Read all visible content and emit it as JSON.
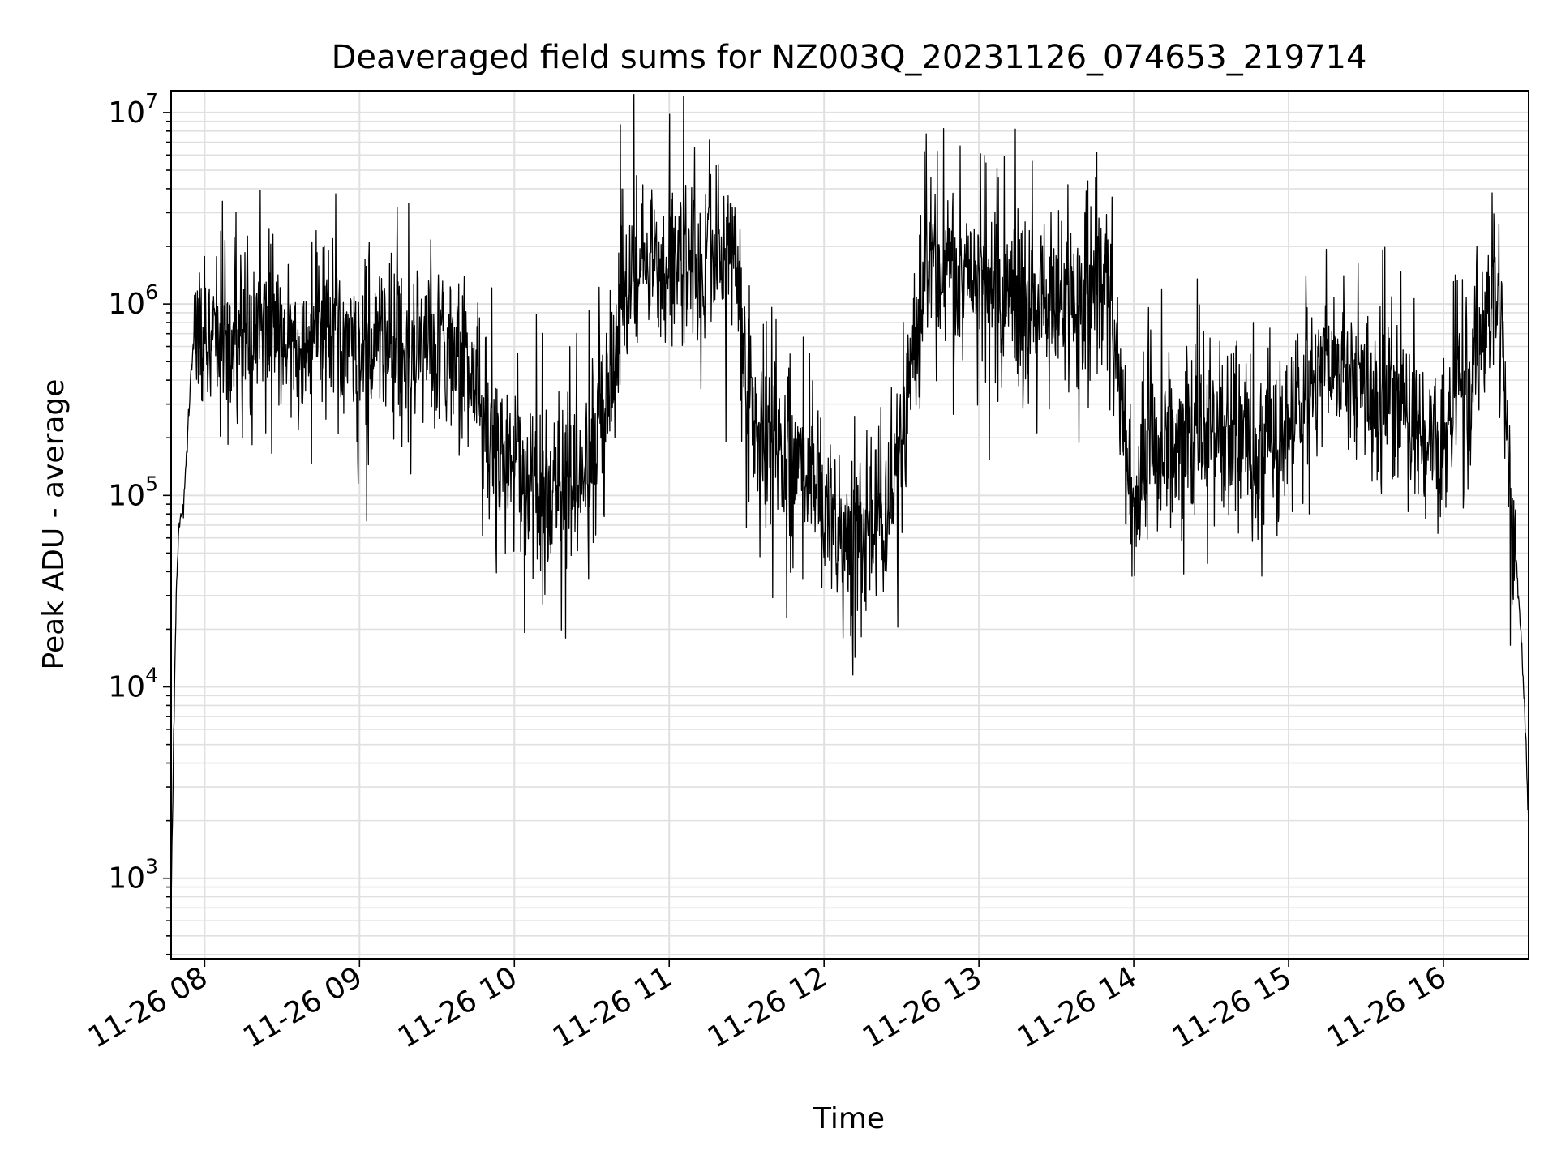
{
  "chart_data": {
    "type": "line",
    "title": "Deaveraged field sums for NZ003Q_20231126_074653_219714",
    "xlabel": "Time",
    "ylabel": "Peak ADU - average",
    "x_range": [
      "2023-11-26 07:47",
      "2023-11-26 16:33"
    ],
    "ylim": [
      380,
      13000000
    ],
    "yscale": "log",
    "grid": true,
    "grid_minor": true,
    "x_ticks": [
      "11-26 08",
      "11-26 09",
      "11-26 10",
      "11-26 11",
      "11-26 12",
      "11-26 13",
      "11-26 14",
      "11-26 15",
      "11-26 16"
    ],
    "y_ticks": [
      {
        "base": "10",
        "exp": "3",
        "value": 1000
      },
      {
        "base": "10",
        "exp": "4",
        "value": 10000
      },
      {
        "base": "10",
        "exp": "5",
        "value": 100000
      },
      {
        "base": "10",
        "exp": "6",
        "value": 1000000
      },
      {
        "base": "10",
        "exp": "7",
        "value": 10000000
      }
    ],
    "line_color": "#000000",
    "grid_color": "#e0e0e0",
    "series": [
      {
        "x": [
          "2023-11-26 07:47",
          "2023-11-26 07:48",
          "2023-11-26 07:49",
          "2023-11-26 07:50",
          "2023-11-26 07:52",
          "2023-11-26 07:54",
          "2023-11-26 07:56",
          "2023-11-26 08:00",
          "2023-11-26 08:10",
          "2023-11-26 08:20",
          "2023-11-26 08:30",
          "2023-11-26 08:40",
          "2023-11-26 08:50",
          "2023-11-26 09:00",
          "2023-11-26 09:10",
          "2023-11-26 09:20",
          "2023-11-26 09:30",
          "2023-11-26 09:40",
          "2023-11-26 09:50",
          "2023-11-26 10:00",
          "2023-11-26 10:10",
          "2023-11-26 10:20",
          "2023-11-26 10:30",
          "2023-11-26 10:38",
          "2023-11-26 10:45",
          "2023-11-26 10:55",
          "2023-11-26 11:05",
          "2023-11-26 11:15",
          "2023-11-26 11:25",
          "2023-11-26 11:30",
          "2023-11-26 11:35",
          "2023-11-26 11:45",
          "2023-11-26 11:55",
          "2023-11-26 12:05",
          "2023-11-26 12:15",
          "2023-11-26 12:25",
          "2023-11-26 12:32",
          "2023-11-26 12:40",
          "2023-11-26 12:50",
          "2023-11-26 13:00",
          "2023-11-26 13:10",
          "2023-11-26 13:20",
          "2023-11-26 13:30",
          "2023-11-26 13:40",
          "2023-11-26 13:50",
          "2023-11-26 14:00",
          "2023-11-26 14:05",
          "2023-11-26 14:15",
          "2023-11-26 14:25",
          "2023-11-26 14:35",
          "2023-11-26 14:45",
          "2023-11-26 14:55",
          "2023-11-26 15:05",
          "2023-11-26 15:15",
          "2023-11-26 15:25",
          "2023-11-26 15:35",
          "2023-11-26 15:45",
          "2023-11-26 15:55",
          "2023-11-26 16:05",
          "2023-11-26 16:12",
          "2023-11-26 16:17",
          "2023-11-26 16:20",
          "2023-11-26 16:23",
          "2023-11-26 16:26",
          "2023-11-26 16:28",
          "2023-11-26 16:30",
          "2023-11-26 16:32",
          "2023-11-26 16:33"
        ],
        "y": [
          700,
          6000,
          30000,
          70000,
          90000,
          300000,
          700000,
          600000,
          700000,
          800000,
          700000,
          650000,
          800000,
          600000,
          700000,
          500000,
          600000,
          550000,
          200000,
          150000,
          90000,
          110000,
          150000,
          400000,
          1500000,
          1800000,
          1600000,
          1700000,
          2000000,
          350000,
          180000,
          150000,
          120000,
          70000,
          60000,
          70000,
          300000,
          1800000,
          1500000,
          1300000,
          1200000,
          1000000,
          900000,
          1100000,
          1000000,
          80000,
          150000,
          180000,
          200000,
          250000,
          180000,
          180000,
          300000,
          500000,
          400000,
          300000,
          250000,
          180000,
          300000,
          500000,
          900000,
          1200000,
          800000,
          60000,
          45000,
          20000,
          5000,
          1800
        ]
      }
    ]
  }
}
